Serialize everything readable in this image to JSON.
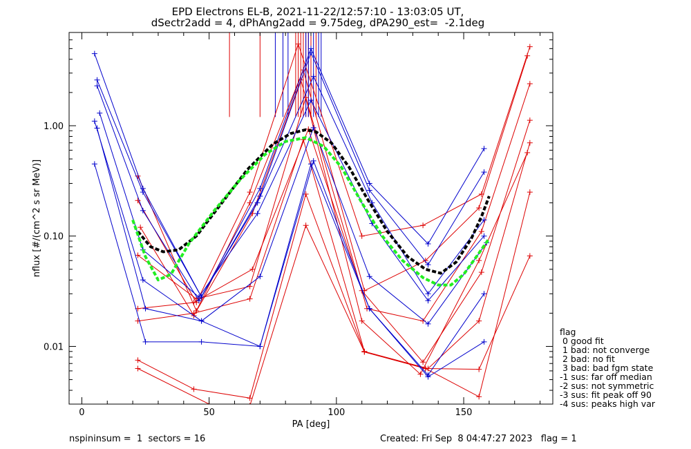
{
  "title_line1": "EPD Electrons EL-B, 2021-11-22/12:57:10 - 13:03:05 UT,",
  "title_line2": "dSectr2add = 4, dPhAng2add = 9.75deg, dPA290_est=  -2.1deg",
  "legend": {
    "header": "flag",
    "items": [
      " 0 good fit",
      " 1 bad: not converge",
      " 2 bad: no fit",
      " 3 bad: bad fgm state",
      "-1 sus: far off median",
      "-2 sus: not symmetric",
      "-3 sus: fit peak off 90",
      "-4 sus: peaks high var"
    ]
  },
  "footer": {
    "left": "nspininsum =  1  sectors = 16",
    "right": "Created: Fri Sep  8 04:47:27 2023   flag = 1"
  },
  "colors": {
    "red": "#dd0000",
    "blue": "#0000cc",
    "black": "#000000",
    "green": "#22ee22"
  },
  "chart_data": {
    "type": "line",
    "xlabel": "PA [deg]",
    "ylabel": "nflux [#/(cm^2 s sr MeV)]",
    "xlim": [
      -5,
      185
    ],
    "ylim": [
      0.003,
      7.0
    ],
    "yscale": "log",
    "xticks": [
      0,
      50,
      100,
      150
    ],
    "xtick_labels": [
      "0",
      "50",
      "100",
      "150"
    ],
    "yticks": [
      0.01,
      0.1,
      1.0
    ],
    "ytick_labels": [
      "0.01",
      "0.10",
      "1.00"
    ],
    "series": [
      {
        "color": "red",
        "x": [
          22,
          45,
          66,
          85,
          110,
          134,
          157,
          176
        ],
        "y": [
          0.21,
          0.025,
          0.25,
          5.5,
          0.1,
          0.125,
          0.24,
          5.2
        ]
      },
      {
        "color": "red",
        "x": [
          22,
          45,
          66,
          87,
          111,
          135,
          156,
          175
        ],
        "y": [
          0.35,
          0.021,
          0.2,
          3.2,
          0.032,
          0.06,
          0.18,
          4.3
        ]
      },
      {
        "color": "red",
        "x": [
          23,
          44,
          67,
          86,
          112,
          134,
          157,
          176
        ],
        "y": [
          0.12,
          0.019,
          0.16,
          2.6,
          0.022,
          0.017,
          0.11,
          2.4
        ]
      },
      {
        "color": "red",
        "x": [
          22,
          45,
          66,
          88,
          110,
          133,
          156,
          175
        ],
        "y": [
          0.067,
          0.027,
          0.035,
          1.8,
          0.017,
          0.0056,
          0.06,
          0.57
        ]
      },
      {
        "color": "red",
        "x": [
          22,
          44,
          67,
          89,
          110,
          134,
          157,
          176
        ],
        "y": [
          0.022,
          0.025,
          0.05,
          0.93,
          0.032,
          0.0072,
          0.047,
          1.12
        ]
      },
      {
        "color": "red",
        "x": [
          22,
          44,
          66,
          87,
          111,
          136,
          156,
          176
        ],
        "y": [
          0.017,
          0.02,
          0.027,
          0.75,
          0.009,
          0.0063,
          0.017,
          0.7
        ]
      },
      {
        "color": "red",
        "x": [
          22,
          44,
          66,
          88,
          111,
          135,
          156,
          176
        ],
        "y": [
          0.0075,
          0.0041,
          0.0034,
          0.24,
          0.0089,
          0.0063,
          0.0035,
          0.25
        ]
      },
      {
        "color": "red",
        "x": [
          22,
          50,
          66,
          88,
          111,
          135,
          156,
          176
        ],
        "y": [
          0.0063,
          0.003,
          0.0029,
          0.125,
          0.0089,
          0.0063,
          0.0062,
          0.066
        ]
      },
      {
        "color": "blue",
        "x": [
          5,
          24,
          47,
          70,
          90,
          113,
          136,
          158
        ],
        "y": [
          4.5,
          0.27,
          0.028,
          0.27,
          5.0,
          0.3,
          0.085,
          0.62
        ]
      },
      {
        "color": "blue",
        "x": [
          6,
          24,
          47,
          70,
          90,
          113,
          136,
          158
        ],
        "y": [
          2.6,
          0.25,
          0.028,
          0.23,
          4.6,
          0.26,
          0.055,
          0.38
        ]
      },
      {
        "color": "blue",
        "x": [
          6,
          24,
          46,
          69,
          91,
          114,
          136,
          158
        ],
        "y": [
          2.3,
          0.17,
          0.026,
          0.2,
          2.8,
          0.2,
          0.03,
          0.14
        ]
      },
      {
        "color": "blue",
        "x": [
          7,
          24,
          46,
          69,
          90,
          114,
          136,
          158
        ],
        "y": [
          1.3,
          0.075,
          0.028,
          0.16,
          1.7,
          0.13,
          0.026,
          0.1
        ]
      },
      {
        "color": "blue",
        "x": [
          5,
          24,
          47,
          70,
          91,
          113,
          136,
          159
        ],
        "y": [
          1.1,
          0.04,
          0.017,
          0.043,
          0.96,
          0.043,
          0.016,
          0.087
        ]
      },
      {
        "color": "blue",
        "x": [
          6,
          25,
          47,
          70,
          91,
          113,
          136,
          158
        ],
        "y": [
          0.95,
          0.022,
          0.017,
          0.01,
          0.48,
          0.022,
          0.0055,
          0.03
        ]
      },
      {
        "color": "blue",
        "x": [
          5,
          25,
          47,
          70,
          90,
          113,
          136,
          158
        ],
        "y": [
          0.45,
          0.011,
          0.011,
          0.01,
          0.45,
          0.022,
          0.0053,
          0.011
        ]
      }
    ],
    "fits": [
      {
        "color": "black",
        "x": [
          22,
          27,
          32,
          38,
          45,
          55,
          65,
          75,
          82,
          88,
          92,
          98,
          105,
          112,
          120,
          128,
          135,
          141,
          147,
          153,
          157,
          160
        ],
        "y": [
          0.11,
          0.08,
          0.072,
          0.075,
          0.1,
          0.2,
          0.4,
          0.68,
          0.85,
          0.92,
          0.88,
          0.7,
          0.42,
          0.22,
          0.11,
          0.065,
          0.05,
          0.046,
          0.058,
          0.095,
          0.15,
          0.23
        ]
      },
      {
        "color": "green",
        "x": [
          20,
          25,
          30,
          35,
          42,
          52,
          62,
          72,
          80,
          88,
          95,
          102,
          110,
          118,
          126,
          134,
          140,
          145,
          150,
          155,
          160
        ],
        "y": [
          0.14,
          0.065,
          0.04,
          0.045,
          0.085,
          0.17,
          0.32,
          0.55,
          0.72,
          0.78,
          0.65,
          0.42,
          0.2,
          0.1,
          0.06,
          0.042,
          0.036,
          0.036,
          0.045,
          0.065,
          0.095
        ]
      }
    ],
    "vlines_red_x": [
      58,
      70,
      84,
      85,
      86,
      87,
      88,
      89,
      90,
      92
    ],
    "vlines_blue_x": [
      76,
      79,
      81,
      88,
      89,
      91,
      93,
      94
    ]
  }
}
